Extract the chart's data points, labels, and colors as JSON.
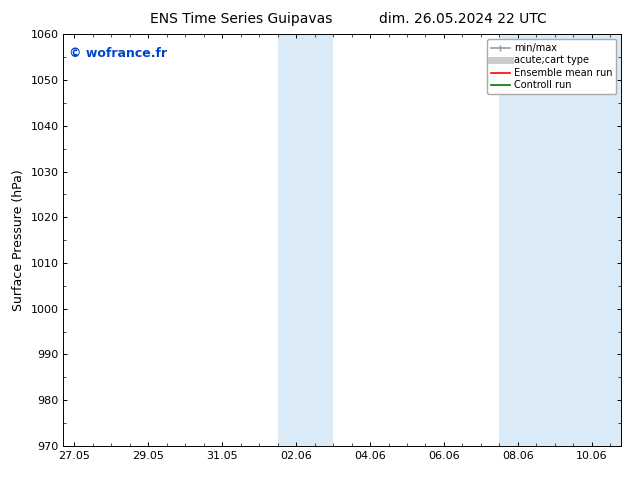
{
  "title_left": "ENS Time Series Guipavas",
  "title_right": "dim. 26.05.2024 22 UTC",
  "ylabel": "Surface Pressure (hPa)",
  "ylim": [
    970,
    1060
  ],
  "yticks": [
    970,
    980,
    990,
    1000,
    1010,
    1020,
    1030,
    1040,
    1050,
    1060
  ],
  "xtick_labels": [
    "27.05",
    "29.05",
    "31.05",
    "02.06",
    "04.06",
    "06.06",
    "08.06",
    "10.06"
  ],
  "xtick_positions": [
    0,
    2,
    4,
    6,
    8,
    10,
    12,
    14
  ],
  "xmin": -0.3,
  "xmax": 14.8,
  "watermark": "© wofrance.fr",
  "watermark_color": "#0044cc",
  "background_color": "#ffffff",
  "plot_bg_color": "#ffffff",
  "shaded_regions": [
    {
      "xstart": 5.5,
      "xend": 6.3,
      "color": "#daeaf7"
    },
    {
      "xstart": 6.3,
      "xend": 7.0,
      "color": "#daeaf7"
    },
    {
      "xstart": 11.5,
      "xend": 12.0,
      "color": "#daeaf7"
    },
    {
      "xstart": 12.0,
      "xend": 12.5,
      "color": "#daeaf7"
    },
    {
      "xstart": 12.5,
      "xend": 14.8,
      "color": "#daeaf7"
    }
  ],
  "legend_entries": [
    {
      "label": "min/max",
      "color": "#999999",
      "lw": 1.2
    },
    {
      "label": "acute;cart type",
      "color": "#cccccc",
      "lw": 5
    },
    {
      "label": "Ensemble mean run",
      "color": "#ff0000",
      "lw": 1.2
    },
    {
      "label": "Controll run",
      "color": "#007700",
      "lw": 1.2
    }
  ],
  "title_fontsize": 10,
  "tick_fontsize": 8,
  "ylabel_fontsize": 9,
  "watermark_fontsize": 9,
  "border_color": "#000000"
}
